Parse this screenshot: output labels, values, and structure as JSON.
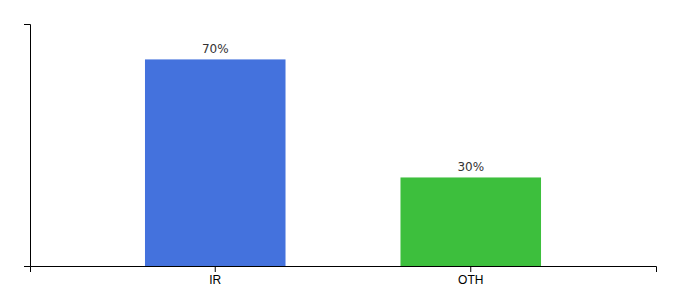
{
  "chart_data": {
    "type": "bar",
    "categories": [
      "IR",
      "OTH"
    ],
    "values": [
      70,
      30
    ],
    "value_labels": [
      "70%",
      "30%"
    ],
    "colors": [
      "#4472dd",
      "#3dbf3d"
    ],
    "ylim": [
      0,
      82
    ],
    "yticks": [],
    "data_labels": true,
    "tick_labels": "x"
  }
}
